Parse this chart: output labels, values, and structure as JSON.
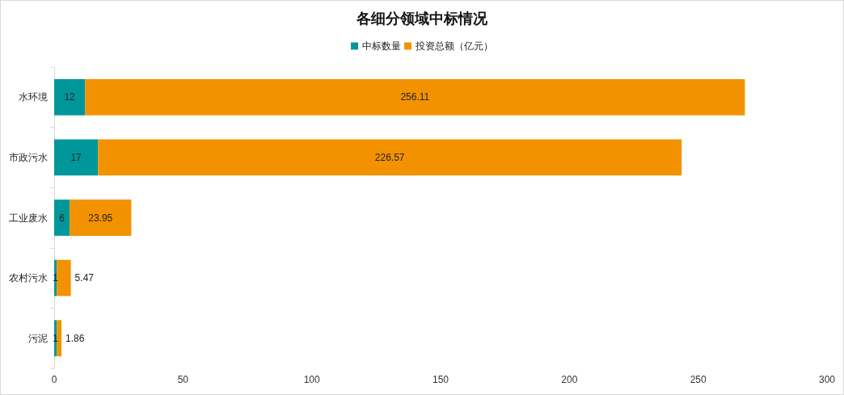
{
  "chart_data": {
    "type": "bar",
    "title": "各细分领域中标情况",
    "orientation": "horizontal",
    "stacked": true,
    "categories": [
      "水环境",
      "市政污水",
      "工业废水",
      "农村污水",
      "污泥"
    ],
    "series": [
      {
        "name": "中标数量",
        "color": "#00979a",
        "values": [
          12,
          17,
          6,
          1,
          1
        ]
      },
      {
        "name": "投资总额（亿元）",
        "color": "#f39200",
        "values": [
          256.11,
          226.57,
          23.95,
          5.47,
          1.86
        ]
      }
    ],
    "xlim": [
      0,
      300
    ],
    "xticks": [
      0,
      50,
      100,
      150,
      200,
      250,
      300
    ],
    "data_labels": true,
    "legend": "top",
    "grid": false
  }
}
